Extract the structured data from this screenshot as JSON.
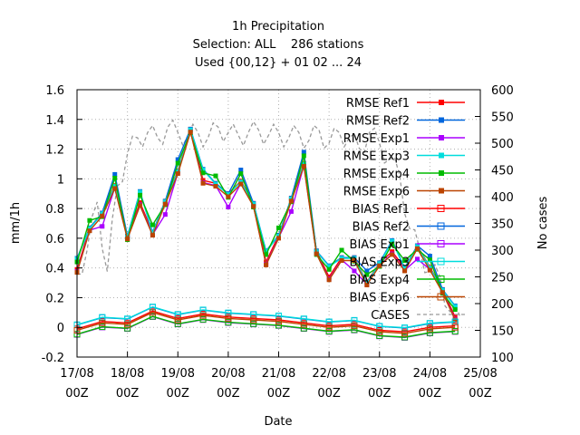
{
  "chart_data": {
    "type": "line",
    "title": [
      "1h Precipitation",
      "Selection: ALL    286 stations",
      "Used {00,12} + 01 02 ... 24"
    ],
    "xlabel": "Date",
    "ylabel": "mm/1h",
    "y2label": "No cases",
    "xlim": [
      0,
      8
    ],
    "ylim": [
      -0.2,
      1.6
    ],
    "y2lim": [
      100,
      600
    ],
    "grid": true,
    "legend_position": "top-right",
    "x_ticks": [
      "17/08\n00Z",
      "18/08\n00Z",
      "19/08\n00Z",
      "20/08\n00Z",
      "21/08\n00Z",
      "22/08\n00Z",
      "23/08\n00Z",
      "24/08\n00Z",
      "25/08\n00Z"
    ],
    "y_ticks": [
      "-0.2",
      "0",
      "0.2",
      "0.4",
      "0.6",
      "0.8",
      "1",
      "1.2",
      "1.4",
      "1.6"
    ],
    "y2_ticks": [
      "100",
      "150",
      "200",
      "250",
      "300",
      "350",
      "400",
      "450",
      "500",
      "550",
      "600"
    ],
    "rmse_x": [
      0.0,
      0.25,
      0.5,
      0.75,
      1.0,
      1.25,
      1.5,
      1.75,
      2.0,
      2.25,
      2.5,
      2.75,
      3.0,
      3.25,
      3.5,
      3.75,
      4.0,
      4.25,
      4.5,
      4.75,
      5.0,
      5.25,
      5.5,
      5.75,
      6.0,
      6.25,
      6.5,
      6.75,
      7.0,
      7.25,
      7.5
    ],
    "rmse_base": [
      0.4,
      0.65,
      0.72,
      0.95,
      0.58,
      0.85,
      0.62,
      0.8,
      1.05,
      1.3,
      1.0,
      0.95,
      0.85,
      0.98,
      0.8,
      0.45,
      0.6,
      0.82,
      1.1,
      0.48,
      0.35,
      0.45,
      0.42,
      0.3,
      0.4,
      0.52,
      0.38,
      0.5,
      0.4,
      0.22,
      0.08
    ],
    "bias_x": [
      0.0,
      0.5,
      1.0,
      1.5,
      2.0,
      2.5,
      3.0,
      3.5,
      4.0,
      4.5,
      5.0,
      5.5,
      6.0,
      6.5,
      7.0,
      7.5
    ],
    "bias_base": [
      -0.02,
      0.03,
      0.02,
      0.1,
      0.05,
      0.08,
      0.06,
      0.05,
      0.04,
      0.02,
      0.0,
      0.01,
      -0.03,
      -0.04,
      -0.01,
      0.0
    ],
    "series": [
      {
        "name": "RMSE Ref1",
        "color": "#ff0000",
        "marker": "filled",
        "kind": "rmse",
        "offset": 0.02
      },
      {
        "name": "RMSE Ref2",
        "color": "#0066dd",
        "marker": "filled",
        "kind": "rmse",
        "offset": 0.05
      },
      {
        "name": "RMSE Exp1",
        "color": "#aa00ff",
        "marker": "filled",
        "kind": "rmse",
        "offset": -0.01
      },
      {
        "name": "RMSE Exp3",
        "color": "#00dddd",
        "marker": "filled",
        "kind": "rmse",
        "offset": 0.03
      },
      {
        "name": "RMSE Exp4",
        "color": "#00bb00",
        "marker": "filled",
        "kind": "rmse",
        "offset": 0.04
      },
      {
        "name": "RMSE Exp6",
        "color": "#bb4400",
        "marker": "filled",
        "kind": "rmse",
        "offset": 0.0
      },
      {
        "name": "BIAS Ref1",
        "color": "#ff0000",
        "marker": "open",
        "kind": "bias",
        "offset": 0.01
      },
      {
        "name": "BIAS Ref2",
        "color": "#0066dd",
        "marker": "open",
        "kind": "bias",
        "offset": 0.02
      },
      {
        "name": "BIAS Exp1",
        "color": "#aa00ff",
        "marker": "open",
        "kind": "bias",
        "offset": -0.02
      },
      {
        "name": "BIAS Exp3",
        "color": "#00dddd",
        "marker": "open",
        "kind": "bias",
        "offset": 0.03
      },
      {
        "name": "BIAS Exp4",
        "color": "#00bb00",
        "marker": "open",
        "kind": "bias",
        "offset": -0.01
      },
      {
        "name": "BIAS Exp6",
        "color": "#bb4400",
        "marker": "open",
        "kind": "bias",
        "offset": 0.0
      },
      {
        "name": "CASES",
        "color": "#999999",
        "marker": "none",
        "kind": "cases",
        "offset": 0
      }
    ],
    "cases": {
      "x": [
        0.0,
        0.2,
        0.4,
        0.6,
        0.8,
        1.0,
        1.2,
        1.4,
        1.6,
        1.8,
        2.0,
        2.2,
        2.4,
        2.6,
        2.8,
        3.0,
        3.2,
        3.4,
        3.6,
        3.8,
        4.0,
        4.2,
        4.4,
        4.6,
        4.8,
        5.0,
        5.2,
        5.4,
        5.6,
        5.8,
        6.0,
        6.2,
        6.4,
        6.6,
        6.8,
        7.0,
        7.2,
        7.4,
        7.6
      ],
      "values": [
        255,
        300,
        390,
        260,
        420,
        480,
        510,
        520,
        510,
        530,
        520,
        515,
        520,
        510,
        530,
        520,
        515,
        520,
        525,
        515,
        520,
        510,
        520,
        505,
        525,
        500,
        520,
        510,
        490,
        520,
        500,
        470,
        440,
        340,
        300,
        260,
        250,
        185,
        175
      ]
    }
  }
}
